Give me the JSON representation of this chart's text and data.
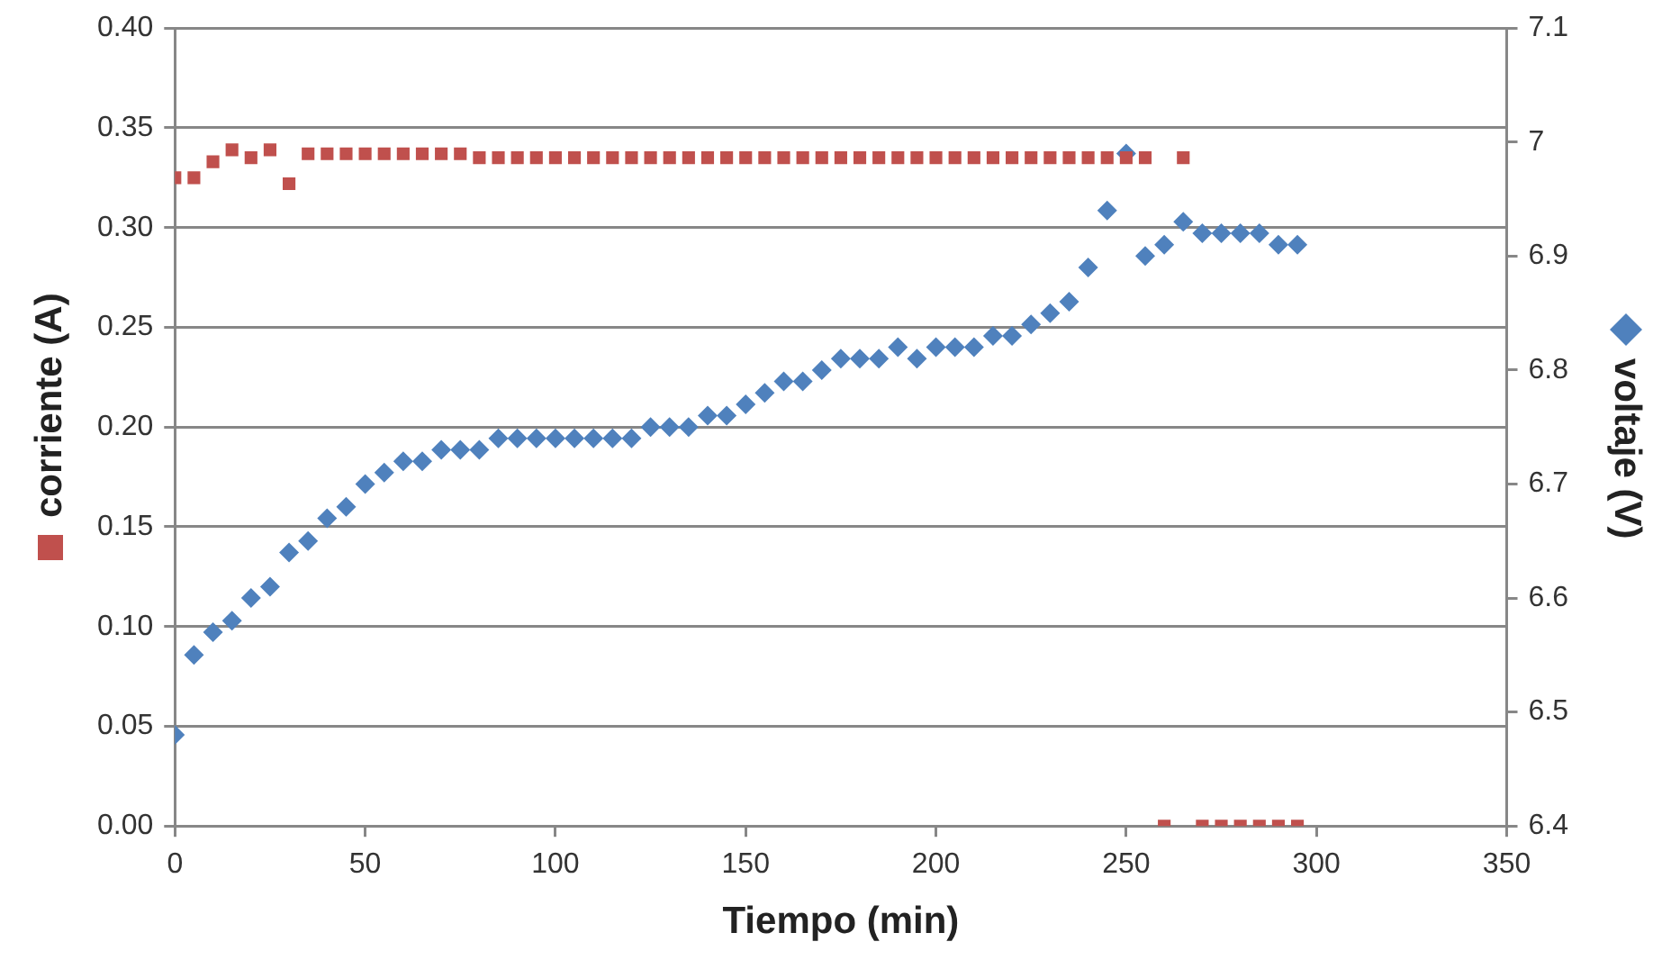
{
  "chart_data": {
    "type": "scatter",
    "xlabel": "Tiempo (min)",
    "ylabel": "corriente (A)",
    "y2label": "voltaje (V)",
    "xlim": [
      0,
      350
    ],
    "xticks": [
      0,
      50,
      100,
      150,
      200,
      250,
      300,
      350
    ],
    "ylim": [
      0,
      0.4
    ],
    "yticks": [
      {
        "value": 0,
        "label": "0.00"
      },
      {
        "value": 0.05,
        "label": "0.05"
      },
      {
        "value": 0.1,
        "label": "0.10"
      },
      {
        "value": 0.15,
        "label": "0.15"
      },
      {
        "value": 0.2,
        "label": "0.20"
      },
      {
        "value": 0.25,
        "label": "0.25"
      },
      {
        "value": 0.3,
        "label": "0.30"
      },
      {
        "value": 0.35,
        "label": "0.35"
      },
      {
        "value": 0.4,
        "label": "0.40"
      }
    ],
    "y2lim": [
      6.4,
      7.1
    ],
    "y2ticks": [
      6.4,
      6.5,
      6.6,
      6.7,
      6.8,
      6.9,
      7,
      7.1
    ],
    "grid": "y",
    "legend": false,
    "series": [
      {
        "color": "#4f81bd",
        "marker": "diamond",
        "axis": "y2",
        "x": [
          0,
          5,
          10,
          15,
          20,
          25,
          30,
          35,
          40,
          45,
          50,
          55,
          60,
          65,
          70,
          75,
          80,
          85,
          90,
          95,
          100,
          105,
          110,
          115,
          120,
          125,
          130,
          135,
          140,
          145,
          150,
          155,
          160,
          165,
          170,
          175,
          180,
          185,
          190,
          195,
          200,
          205,
          210,
          215,
          220,
          225,
          230,
          235,
          240,
          245,
          250,
          255,
          260,
          265,
          270,
          275,
          280,
          285,
          290,
          295
        ],
        "values": [
          6.48,
          6.55,
          6.57,
          6.58,
          6.6,
          6.61,
          6.64,
          6.65,
          6.67,
          6.68,
          6.7,
          6.71,
          6.72,
          6.72,
          6.73,
          6.73,
          6.73,
          6.74,
          6.74,
          6.74,
          6.74,
          6.74,
          6.74,
          6.74,
          6.74,
          6.75,
          6.75,
          6.75,
          6.76,
          6.76,
          6.77,
          6.78,
          6.79,
          6.79,
          6.8,
          6.81,
          6.81,
          6.81,
          6.82,
          6.81,
          6.82,
          6.82,
          6.82,
          6.83,
          6.83,
          6.84,
          6.85,
          6.86,
          6.89,
          6.94,
          6.99,
          6.9,
          6.91,
          6.93,
          6.92,
          6.92,
          6.92,
          6.92,
          6.91,
          6.91
        ]
      },
      {
        "color": "#c0504d",
        "marker": "square",
        "x": [
          0,
          5,
          10,
          15,
          20,
          25,
          30,
          35,
          40,
          45,
          50,
          55,
          60,
          65,
          70,
          75,
          80,
          85,
          90,
          95,
          100,
          105,
          110,
          115,
          120,
          125,
          130,
          135,
          140,
          145,
          150,
          155,
          160,
          165,
          170,
          175,
          180,
          185,
          190,
          195,
          200,
          205,
          210,
          215,
          220,
          225,
          230,
          235,
          240,
          245,
          250,
          255,
          260,
          265,
          270,
          275,
          280,
          285,
          290,
          295
        ],
        "values": [
          0.325,
          0.325,
          0.333,
          0.339,
          0.335,
          0.339,
          0.322,
          0.337,
          0.337,
          0.337,
          0.337,
          0.337,
          0.337,
          0.337,
          0.337,
          0.337,
          0.335,
          0.335,
          0.335,
          0.335,
          0.335,
          0.335,
          0.335,
          0.335,
          0.335,
          0.335,
          0.335,
          0.335,
          0.335,
          0.335,
          0.335,
          0.335,
          0.335,
          0.335,
          0.335,
          0.335,
          0.335,
          0.335,
          0.335,
          0.335,
          0.335,
          0.335,
          0.335,
          0.335,
          0.335,
          0.335,
          0.335,
          0.335,
          0.335,
          0.335,
          0.335,
          0.335,
          0,
          0.335,
          0,
          0,
          0,
          0,
          0,
          0
        ]
      }
    ]
  }
}
